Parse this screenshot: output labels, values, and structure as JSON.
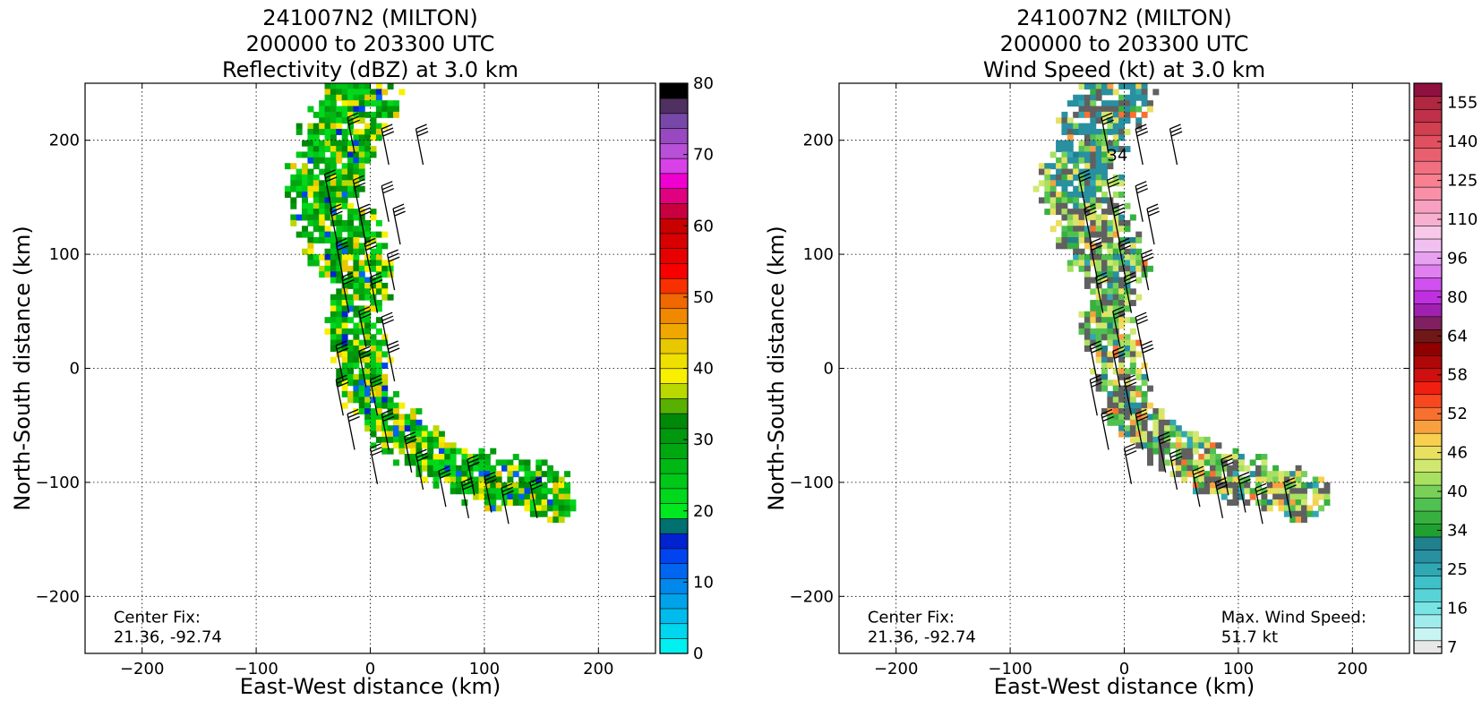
{
  "chart_data": [
    {
      "type": "heatmap",
      "title": [
        "241007N2 (MILTON)",
        "200000 to 203300 UTC",
        "Reflectivity (dBZ) at 3.0 km"
      ],
      "xlabel": "East-West distance (km)",
      "ylabel": "North-South distance (km)",
      "xlim": [
        -250,
        250
      ],
      "ylim": [
        -250,
        250
      ],
      "xticks": [
        -200,
        -100,
        0,
        100,
        200
      ],
      "yticks": [
        -200,
        -100,
        0,
        100,
        200
      ],
      "grid": true,
      "annotations": [
        {
          "text": "Center Fix:\n21.36, -92.74",
          "x": -225,
          "y": -240
        }
      ],
      "colorbar": {
        "min": 0,
        "max": 80,
        "tick_labels": [
          "0",
          "10",
          "20",
          "30",
          "40",
          "50",
          "60",
          "70",
          "80"
        ],
        "tick_values": [
          0,
          10,
          20,
          30,
          40,
          50,
          60,
          70,
          80
        ],
        "colors": [
          "#00f0f0",
          "#00d6ee",
          "#00bcec",
          "#00a2ea",
          "#0088ec",
          "#0066f0",
          "#0044f0",
          "#0022d0",
          "#007070",
          "#00e820",
          "#00d81c",
          "#00c818",
          "#00b814",
          "#00a810",
          "#00980c",
          "#008808",
          "#58b000",
          "#b8d800",
          "#f8f000",
          "#f0e000",
          "#e8c800",
          "#f0a800",
          "#f08800",
          "#f06800",
          "#f83000",
          "#f80000",
          "#e80000",
          "#d80000",
          "#c80000",
          "#c80040",
          "#e00080",
          "#f000d0",
          "#d840e8",
          "#b850d8",
          "#9848c0",
          "#7848a8",
          "#503060",
          "#000000"
        ]
      },
      "wind_barbs": true
    },
    {
      "type": "heatmap",
      "title": [
        "241007N2 (MILTON)",
        "200000 to 203300 UTC",
        "Wind Speed (kt) at 3.0 km"
      ],
      "xlabel": "East-West distance (km)",
      "ylabel": "North-South distance (km)",
      "xlim": [
        -250,
        250
      ],
      "ylim": [
        -250,
        250
      ],
      "xticks": [
        -200,
        -100,
        0,
        100,
        200
      ],
      "yticks": [
        -200,
        -100,
        0,
        100,
        200
      ],
      "grid": true,
      "annotations": [
        {
          "text": "Center Fix:\n21.36, -92.74",
          "x": -225,
          "y": -240
        },
        {
          "text": "Max. Wind Speed:\n51.7 kt",
          "x": 85,
          "y": -240
        },
        {
          "text": "34",
          "x": -15,
          "y": 182
        }
      ],
      "colorbar": {
        "min": 7,
        "max": 160,
        "tick_labels": [
          "7",
          "16",
          "25",
          "34",
          "40",
          "46",
          "52",
          "58",
          "64",
          "80",
          "96",
          "110",
          "125",
          "140",
          "155"
        ],
        "tick_index": [
          0,
          3,
          6,
          9,
          12,
          15,
          18,
          21,
          24,
          27,
          30,
          33,
          36,
          39,
          42
        ],
        "colors": [
          "#e8e8e8",
          "#c8f4f4",
          "#a0ecec",
          "#78e4e4",
          "#58d4d8",
          "#40c0c8",
          "#30a8b4",
          "#2890a0",
          "#20808c",
          "#20a030",
          "#38b040",
          "#50c050",
          "#78d058",
          "#a8e060",
          "#d0e870",
          "#e8e060",
          "#f8d050",
          "#f8a040",
          "#f87030",
          "#f84820",
          "#f02010",
          "#d01010",
          "#b00808",
          "#900000",
          "#701818",
          "#802060",
          "#a020b0",
          "#c030e0",
          "#d050f0",
          "#e080f0",
          "#e8a0f0",
          "#f0c0f0",
          "#f8c8e8",
          "#f8b0d0",
          "#f8a0c0",
          "#f890a8",
          "#f88090",
          "#f07080",
          "#e86070",
          "#e05060",
          "#d04050",
          "#c03048",
          "#b02840",
          "#901040"
        ]
      },
      "wind_barbs": true
    }
  ]
}
